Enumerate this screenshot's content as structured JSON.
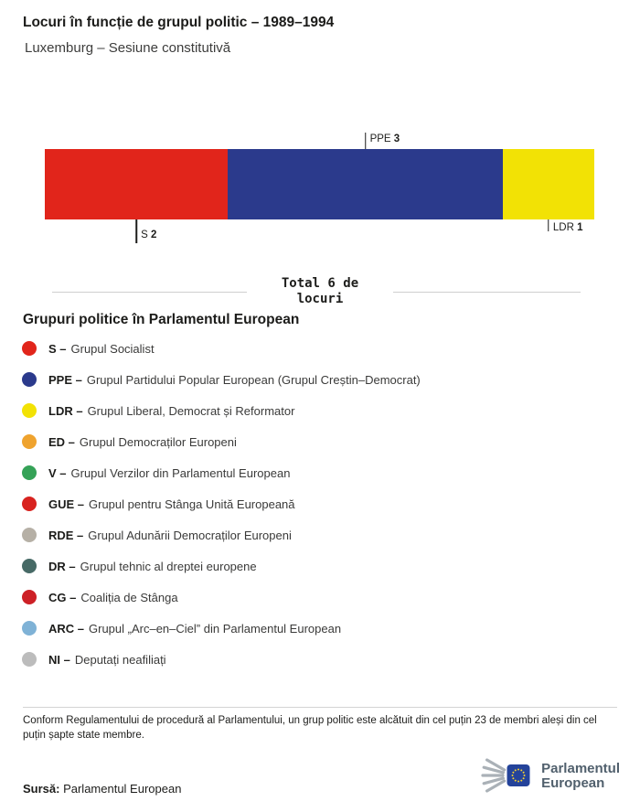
{
  "chart_data": {
    "type": "bar",
    "stacked": true,
    "title": "Locuri în funcție de grupul politic – 1989–1994",
    "subtitle": "Luxemburg – Sesiune constitutivă",
    "total_seats": 6,
    "total_line1": "Total 6 de",
    "total_line2": "locuri",
    "segments": [
      {
        "group": "S",
        "seats": 2,
        "color": "#e1251b",
        "callout_position": "below"
      },
      {
        "group": "PPE",
        "seats": 3,
        "color": "#2b3a8c",
        "callout_position": "above"
      },
      {
        "group": "LDR",
        "seats": 1,
        "color": "#f2e205",
        "callout_position": "below"
      }
    ]
  },
  "legend": {
    "heading": "Grupuri politice în Parlamentul European",
    "items": [
      {
        "abbr": "S –",
        "label": "Grupul Socialist",
        "color": "#e1251b"
      },
      {
        "abbr": "PPE –",
        "label": "Grupul Partidului Popular European (Grupul Creștin–Democrat)",
        "color": "#2b3a8c"
      },
      {
        "abbr": "LDR –",
        "label": "Grupul Liberal, Democrat și Reformator",
        "color": "#f2e205"
      },
      {
        "abbr": "ED –",
        "label": "Grupul Democraților Europeni",
        "color": "#efa32e"
      },
      {
        "abbr": "V –",
        "label": "Grupul Verzilor din Parlamentul European",
        "color": "#35a257"
      },
      {
        "abbr": "GUE –",
        "label": "Grupul pentru Stânga Unită Europeană",
        "color": "#d8231f"
      },
      {
        "abbr": "RDE –",
        "label": "Grupul Adunării Democraților Europeni",
        "color": "#b6b0a6"
      },
      {
        "abbr": "DR –",
        "label": "Grupul tehnic al dreptei europene",
        "color": "#476a66"
      },
      {
        "abbr": "CG –",
        "label": "Coaliția de Stânga",
        "color": "#cd2026"
      },
      {
        "abbr": "ARC –",
        "label": "Grupul „Arc–en–Ciel” din Parlamentul European",
        "color": "#7fb2d6"
      },
      {
        "abbr": "NI –",
        "label": "Deputați neafiliați",
        "color": "#bcbcbc"
      }
    ]
  },
  "footer": {
    "note": "Conform Regulamentului de procedură al Parlamentului, un grup politic este alcătuit din cel puțin 23 de membri aleși din cel puțin șapte state membre.",
    "source_label": "Sursă:",
    "source_value": " Parlamentul European",
    "logo_line1": "Parlamentul",
    "logo_line2": "European"
  }
}
